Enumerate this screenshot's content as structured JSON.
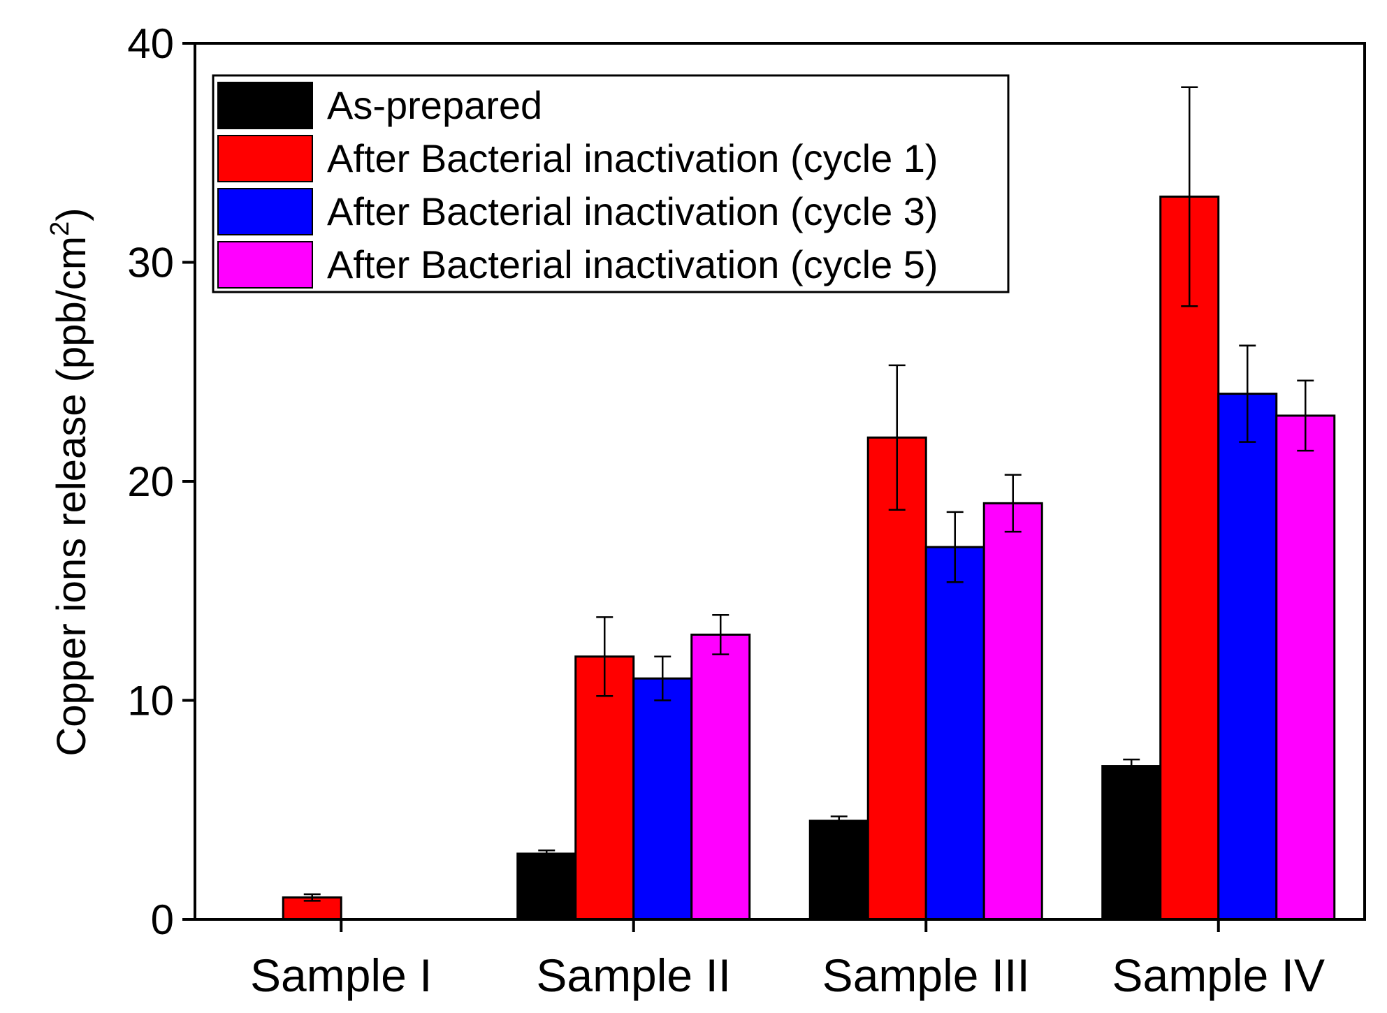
{
  "chart_data": {
    "type": "bar",
    "title": "",
    "xlabel": "",
    "ylabel": "Copper ions release (ppb/cm",
    "ylabel_superscript": "2",
    "ylabel_close": ")",
    "ylim": [
      0,
      40
    ],
    "yticks": [
      "0",
      "10",
      "20",
      "30",
      "40"
    ],
    "categories": [
      "Sample I",
      "Sample II",
      "Sample III",
      "Sample IV"
    ],
    "series": [
      {
        "name": "As-prepared",
        "color": "#000000",
        "values": [
          0,
          3.0,
          4.5,
          7.0
        ],
        "errors": [
          0,
          0.15,
          0.2,
          0.3
        ]
      },
      {
        "name": "After Bacterial inactivation (cycle 1)",
        "color": "#ff0000",
        "values": [
          1.0,
          12.0,
          22.0,
          33.0
        ],
        "errors": [
          0.15,
          1.8,
          3.3,
          5.0
        ]
      },
      {
        "name": "After Bacterial inactivation (cycle 3)",
        "color": "#0000ff",
        "values": [
          0,
          11.0,
          17.0,
          24.0
        ],
        "errors": [
          0,
          1.0,
          1.6,
          2.2
        ]
      },
      {
        "name": "After Bacterial inactivation (cycle 5)",
        "color": "#ff00ff",
        "values": [
          0,
          13.0,
          19.0,
          23.0
        ],
        "errors": [
          0,
          0.9,
          1.3,
          1.6
        ]
      }
    ],
    "legend_position": "top-left",
    "grid": false
  }
}
